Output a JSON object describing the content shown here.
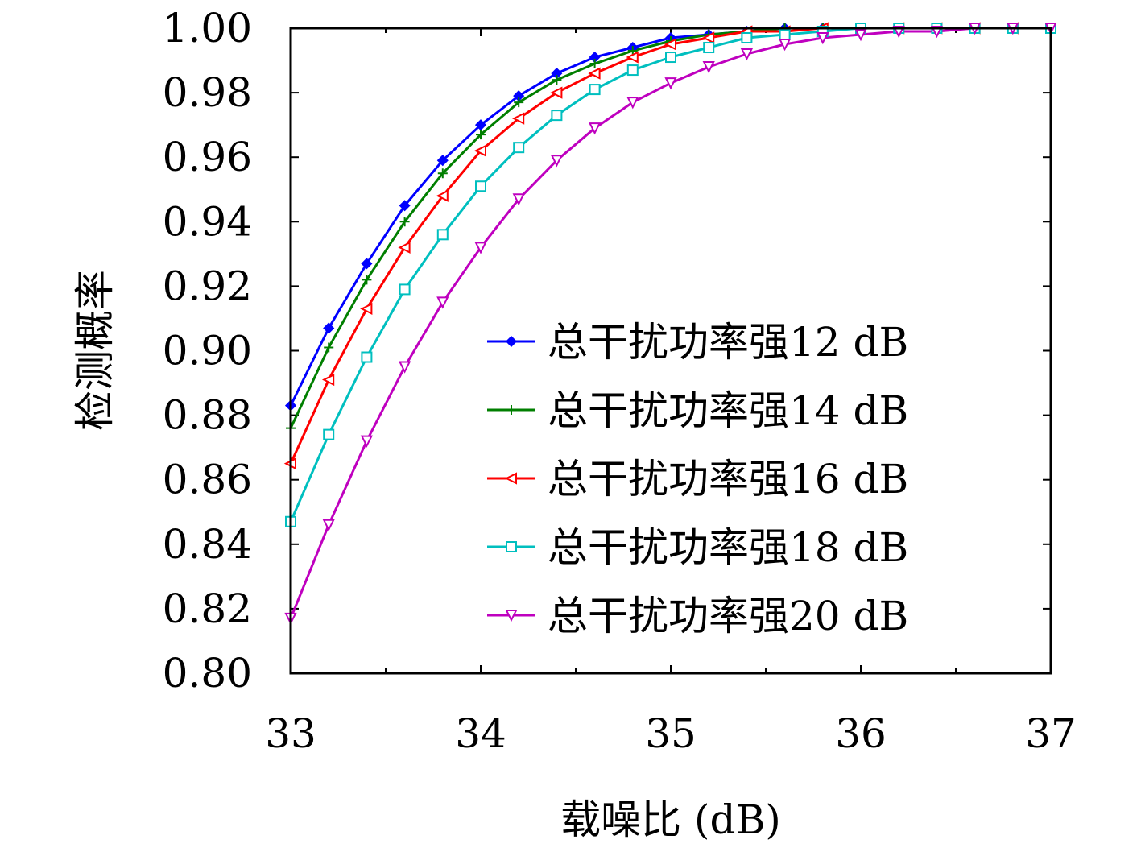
{
  "chart_data": {
    "type": "line",
    "title": "",
    "xlabel": "载噪比 (dB)",
    "ylabel": "检测概率",
    "xlim": [
      33,
      37
    ],
    "ylim": [
      0.8,
      1.0
    ],
    "xticks": [
      33,
      34,
      35,
      36,
      37
    ],
    "xtick_labels": [
      "33",
      "34",
      "35",
      "36",
      "37"
    ],
    "yticks": [
      0.8,
      0.82,
      0.84,
      0.86,
      0.88,
      0.9,
      0.92,
      0.94,
      0.96,
      0.98,
      1.0
    ],
    "ytick_labels": [
      "0.80",
      "0.82",
      "0.84",
      "0.86",
      "0.88",
      "0.90",
      "0.92",
      "0.94",
      "0.96",
      "0.98",
      "1.00"
    ],
    "grid": false,
    "legend_position": "right",
    "x": [
      33.0,
      33.2,
      33.4,
      33.6,
      33.8,
      34.0,
      34.2,
      34.4,
      34.6,
      34.8,
      35.0,
      35.2,
      35.4,
      35.6,
      35.8,
      36.0,
      36.2,
      36.4,
      36.6,
      36.8,
      37.0
    ],
    "series": [
      {
        "name": "总干扰功率强12 dB",
        "color": "#0000ff",
        "marker": "diamond",
        "values": [
          0.883,
          0.907,
          0.927,
          0.945,
          0.959,
          0.97,
          0.979,
          0.986,
          0.991,
          0.994,
          0.997,
          0.998,
          0.999,
          1.0,
          1.0,
          1.0,
          1.0,
          1.0,
          1.0,
          1.0,
          1.0
        ]
      },
      {
        "name": "总干扰功率强14 dB",
        "color": "#007f00",
        "marker": "plus",
        "values": [
          0.876,
          0.901,
          0.922,
          0.94,
          0.955,
          0.967,
          0.977,
          0.984,
          0.989,
          0.993,
          0.996,
          0.998,
          0.999,
          1.0,
          1.0,
          1.0,
          1.0,
          1.0,
          1.0,
          1.0,
          1.0
        ]
      },
      {
        "name": "总干扰功率强16 dB",
        "color": "#ff0000",
        "marker": "triangle-left",
        "values": [
          0.865,
          0.891,
          0.913,
          0.932,
          0.948,
          0.962,
          0.972,
          0.98,
          0.986,
          0.991,
          0.995,
          0.997,
          0.999,
          0.999,
          1.0,
          1.0,
          1.0,
          1.0,
          1.0,
          1.0,
          1.0
        ]
      },
      {
        "name": "总干扰功率强18 dB",
        "color": "#00bfbf",
        "marker": "square",
        "values": [
          0.847,
          0.874,
          0.898,
          0.919,
          0.936,
          0.951,
          0.963,
          0.973,
          0.981,
          0.987,
          0.991,
          0.994,
          0.997,
          0.998,
          0.999,
          1.0,
          1.0,
          1.0,
          1.0,
          1.0,
          1.0
        ]
      },
      {
        "name": "总干扰功率强20 dB",
        "color": "#bf00bf",
        "marker": "triangle-down",
        "values": [
          0.817,
          0.846,
          0.872,
          0.895,
          0.915,
          0.932,
          0.947,
          0.959,
          0.969,
          0.977,
          0.983,
          0.988,
          0.992,
          0.995,
          0.997,
          0.998,
          0.999,
          0.999,
          1.0,
          1.0,
          1.0
        ]
      }
    ]
  }
}
